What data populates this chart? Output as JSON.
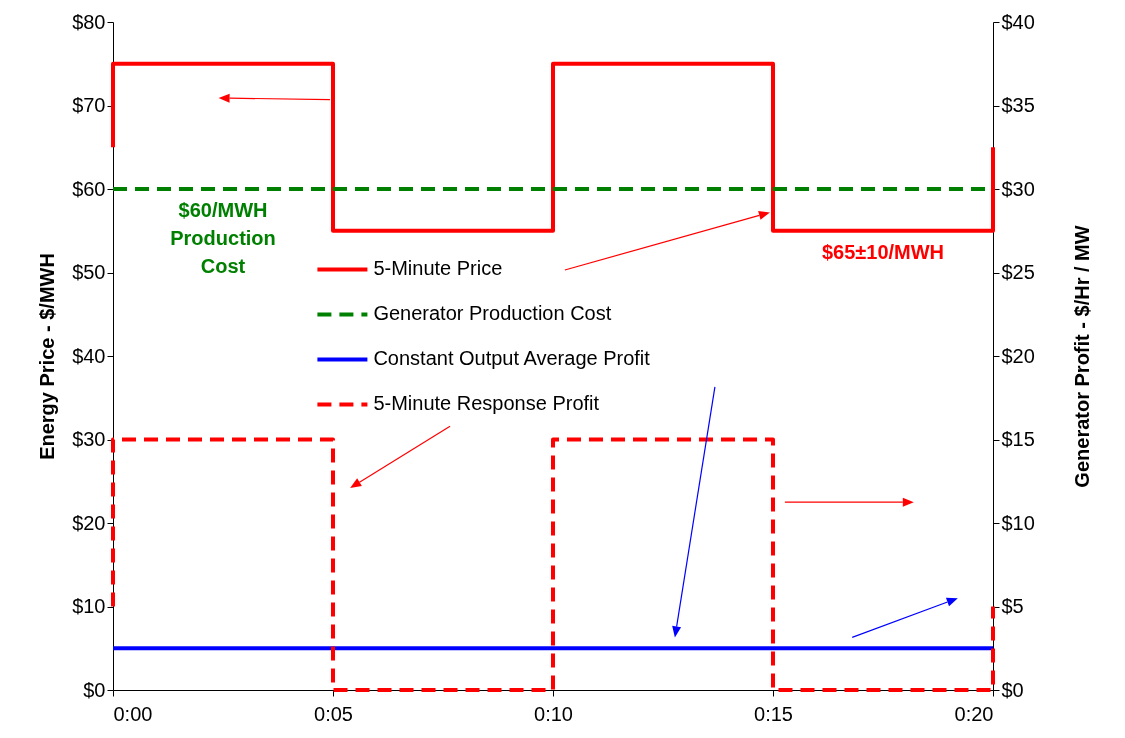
{
  "chart_data": {
    "type": "line",
    "ylabel": "Energy Price - $/MWH",
    "y2label": "Generator Profit - $/Hr / MW",
    "xlim": [
      0,
      20
    ],
    "xticks": [
      {
        "value": 0,
        "label": "0:00"
      },
      {
        "value": 5,
        "label": "0:05"
      },
      {
        "value": 10,
        "label": "0:10"
      },
      {
        "value": 15,
        "label": "0:15"
      },
      {
        "value": 20,
        "label": "0:20"
      }
    ],
    "ylim": [
      0,
      80
    ],
    "yticks": [
      {
        "value": 0,
        "label": "$0"
      },
      {
        "value": 10,
        "label": "$10"
      },
      {
        "value": 20,
        "label": "$20"
      },
      {
        "value": 30,
        "label": "$30"
      },
      {
        "value": 40,
        "label": "$40"
      },
      {
        "value": 50,
        "label": "$50"
      },
      {
        "value": 60,
        "label": "$60"
      },
      {
        "value": 70,
        "label": "$70"
      },
      {
        "value": 80,
        "label": "$80"
      }
    ],
    "y2lim": [
      0,
      40
    ],
    "y2ticks": [
      {
        "value": 0,
        "label": "$0"
      },
      {
        "value": 5,
        "label": "$5"
      },
      {
        "value": 10,
        "label": "$10"
      },
      {
        "value": 15,
        "label": "$15"
      },
      {
        "value": 20,
        "label": "$20"
      },
      {
        "value": 25,
        "label": "$25"
      },
      {
        "value": 30,
        "label": "$30"
      },
      {
        "value": 35,
        "label": "$35"
      },
      {
        "value": 40,
        "label": "$40"
      }
    ],
    "grid": false,
    "legend": "center",
    "marker": "none",
    "series": [
      {
        "name": "5-Minute Price",
        "color": "#ff0000",
        "line_style": "solid",
        "x": [
          0,
          0,
          5,
          5,
          10,
          10,
          15,
          15,
          20,
          20
        ],
        "values": [
          65,
          75,
          75,
          55,
          55,
          75,
          75,
          55,
          55,
          65
        ]
      },
      {
        "name": "Generator Production Cost",
        "color": "#008000",
        "line_style": "dashed",
        "x": [
          0,
          20
        ],
        "values": [
          60,
          60
        ]
      },
      {
        "name": "Constant Output Average Profit",
        "color": "#0000ff",
        "line_style": "solid",
        "axis": "y2",
        "x": [
          0,
          20
        ],
        "values": [
          2.5,
          2.5
        ]
      },
      {
        "name": "5-Minute Response Profit",
        "color": "#ff0000",
        "line_style": "dashed",
        "axis": "y2",
        "x": [
          0,
          0,
          5,
          5,
          10,
          10,
          15,
          15,
          20,
          20
        ],
        "values": [
          5,
          15,
          15,
          0,
          0,
          15,
          15,
          0,
          0,
          5
        ]
      }
    ],
    "annotations": [
      {
        "text": "$60/MWH\nProduction\nCost",
        "x": 2.5,
        "y": 60
      },
      {
        "text": "$65±10/MWH",
        "x": 17.5,
        "y": 55
      }
    ]
  }
}
